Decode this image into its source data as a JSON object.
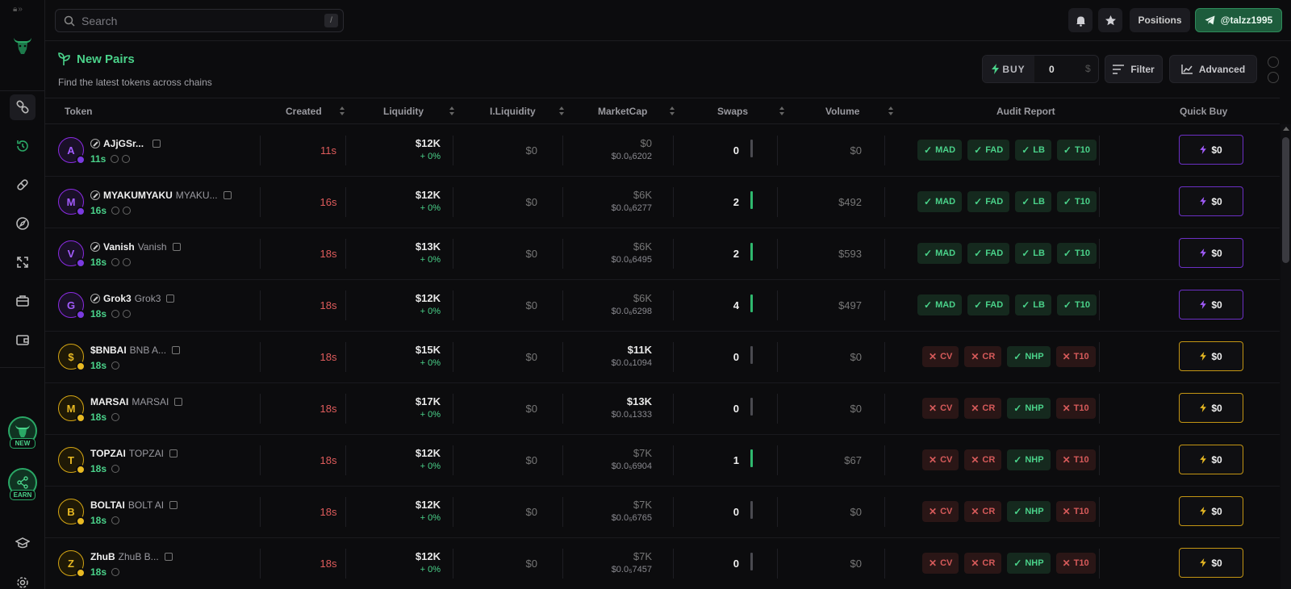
{
  "search": {
    "placeholder": "Search",
    "shortcut": "/"
  },
  "topbar": {
    "positions_label": "Positions",
    "telegram_handle": "@talzz1995"
  },
  "sidebar": {
    "new_badge": "NEW",
    "earn_badge": "EARN"
  },
  "page": {
    "title": "New Pairs",
    "subtitle": "Find the latest tokens across chains"
  },
  "buy": {
    "label": "BUY",
    "amount": "0",
    "currency": "$"
  },
  "toolbar": {
    "filter_label": "Filter",
    "advanced_label": "Advanced"
  },
  "columns": {
    "token": "Token",
    "created": "Created",
    "liquidity": "Liquidity",
    "iliquidity": "I.Liquidity",
    "marketcap": "MarketCap",
    "swaps": "Swaps",
    "volume": "Volume",
    "audit": "Audit Report",
    "quickbuy": "Quick Buy"
  },
  "colors": {
    "accent": "#4ad28a",
    "danger": "#d65a5a",
    "purple": "#8a2be2",
    "gold": "#d4a514"
  },
  "rows": [
    {
      "letter": "A",
      "chain": "purple",
      "symbol": "AJjGSr...",
      "name": "",
      "age": "11s",
      "created": "11s",
      "liquidity": "$12K",
      "liq_change": "+ 0%",
      "iliquidity": "$0",
      "mcap": "$0",
      "mcap_bold": false,
      "price": "$0.0₆6202",
      "swaps": "0",
      "swap_active": false,
      "volume": "$0",
      "audit": [
        {
          "ok": true,
          "label": "MAD"
        },
        {
          "ok": true,
          "label": "FAD"
        },
        {
          "ok": true,
          "label": "LB"
        },
        {
          "ok": true,
          "label": "T10"
        }
      ],
      "quick_buy": "$0"
    },
    {
      "letter": "M",
      "chain": "purple",
      "symbol": "MYAKUMYAKU",
      "name": "MYAKU...",
      "age": "16s",
      "created": "16s",
      "liquidity": "$12K",
      "liq_change": "+ 0%",
      "iliquidity": "$0",
      "mcap": "$6K",
      "mcap_bold": false,
      "price": "$0.0₆6277",
      "swaps": "2",
      "swap_active": true,
      "volume": "$492",
      "audit": [
        {
          "ok": true,
          "label": "MAD"
        },
        {
          "ok": true,
          "label": "FAD"
        },
        {
          "ok": true,
          "label": "LB"
        },
        {
          "ok": true,
          "label": "T10"
        }
      ],
      "quick_buy": "$0"
    },
    {
      "letter": "V",
      "chain": "purple",
      "symbol": "Vanish",
      "name": "Vanish",
      "age": "18s",
      "created": "18s",
      "liquidity": "$13K",
      "liq_change": "+ 0%",
      "iliquidity": "$0",
      "mcap": "$6K",
      "mcap_bold": false,
      "price": "$0.0₆6495",
      "swaps": "2",
      "swap_active": true,
      "volume": "$593",
      "audit": [
        {
          "ok": true,
          "label": "MAD"
        },
        {
          "ok": true,
          "label": "FAD"
        },
        {
          "ok": true,
          "label": "LB"
        },
        {
          "ok": true,
          "label": "T10"
        }
      ],
      "quick_buy": "$0"
    },
    {
      "letter": "G",
      "chain": "purple",
      "symbol": "Grok3",
      "name": "Grok3",
      "age": "18s",
      "created": "18s",
      "liquidity": "$12K",
      "liq_change": "+ 0%",
      "iliquidity": "$0",
      "mcap": "$6K",
      "mcap_bold": false,
      "price": "$0.0₆6298",
      "swaps": "4",
      "swap_active": true,
      "volume": "$497",
      "audit": [
        {
          "ok": true,
          "label": "MAD"
        },
        {
          "ok": true,
          "label": "FAD"
        },
        {
          "ok": true,
          "label": "LB"
        },
        {
          "ok": true,
          "label": "T10"
        }
      ],
      "quick_buy": "$0"
    },
    {
      "letter": "$",
      "chain": "gold",
      "symbol": "$BNBAI",
      "name": "BNB A...",
      "age": "18s",
      "created": "18s",
      "liquidity": "$15K",
      "liq_change": "+ 0%",
      "iliquidity": "$0",
      "mcap": "$11K",
      "mcap_bold": true,
      "price": "$0.0₄1094",
      "swaps": "0",
      "swap_active": false,
      "volume": "$0",
      "audit": [
        {
          "ok": false,
          "label": "CV"
        },
        {
          "ok": false,
          "label": "CR"
        },
        {
          "ok": true,
          "label": "NHP"
        },
        {
          "ok": false,
          "label": "T10"
        }
      ],
      "quick_buy": "$0"
    },
    {
      "letter": "M",
      "chain": "gold",
      "symbol": "MARSAI",
      "name": "MARSAI",
      "age": "18s",
      "created": "18s",
      "liquidity": "$17K",
      "liq_change": "+ 0%",
      "iliquidity": "$0",
      "mcap": "$13K",
      "mcap_bold": true,
      "price": "$0.0₄1333",
      "swaps": "0",
      "swap_active": false,
      "volume": "$0",
      "audit": [
        {
          "ok": false,
          "label": "CV"
        },
        {
          "ok": false,
          "label": "CR"
        },
        {
          "ok": true,
          "label": "NHP"
        },
        {
          "ok": false,
          "label": "T10"
        }
      ],
      "quick_buy": "$0"
    },
    {
      "letter": "T",
      "chain": "gold",
      "symbol": "TOPZAI",
      "name": "TOPZAI",
      "age": "18s",
      "created": "18s",
      "liquidity": "$12K",
      "liq_change": "+ 0%",
      "iliquidity": "$0",
      "mcap": "$7K",
      "mcap_bold": false,
      "price": "$0.0₅6904",
      "swaps": "1",
      "swap_active": true,
      "volume": "$67",
      "audit": [
        {
          "ok": false,
          "label": "CV"
        },
        {
          "ok": false,
          "label": "CR"
        },
        {
          "ok": true,
          "label": "NHP"
        },
        {
          "ok": false,
          "label": "T10"
        }
      ],
      "quick_buy": "$0"
    },
    {
      "letter": "B",
      "chain": "gold",
      "symbol": "BOLTAI",
      "name": "BOLT AI",
      "age": "18s",
      "created": "18s",
      "liquidity": "$12K",
      "liq_change": "+ 0%",
      "iliquidity": "$0",
      "mcap": "$7K",
      "mcap_bold": false,
      "price": "$0.0₅6765",
      "swaps": "0",
      "swap_active": false,
      "volume": "$0",
      "audit": [
        {
          "ok": false,
          "label": "CV"
        },
        {
          "ok": false,
          "label": "CR"
        },
        {
          "ok": true,
          "label": "NHP"
        },
        {
          "ok": false,
          "label": "T10"
        }
      ],
      "quick_buy": "$0"
    },
    {
      "letter": "Z",
      "chain": "gold",
      "symbol": "ZhuB",
      "name": "ZhuB B...",
      "age": "18s",
      "created": "18s",
      "liquidity": "$12K",
      "liq_change": "+ 0%",
      "iliquidity": "$0",
      "mcap": "$7K",
      "mcap_bold": false,
      "price": "$0.0₅7457",
      "swaps": "0",
      "swap_active": false,
      "volume": "$0",
      "audit": [
        {
          "ok": false,
          "label": "CV"
        },
        {
          "ok": false,
          "label": "CR"
        },
        {
          "ok": true,
          "label": "NHP"
        },
        {
          "ok": false,
          "label": "T10"
        }
      ],
      "quick_buy": "$0"
    }
  ]
}
